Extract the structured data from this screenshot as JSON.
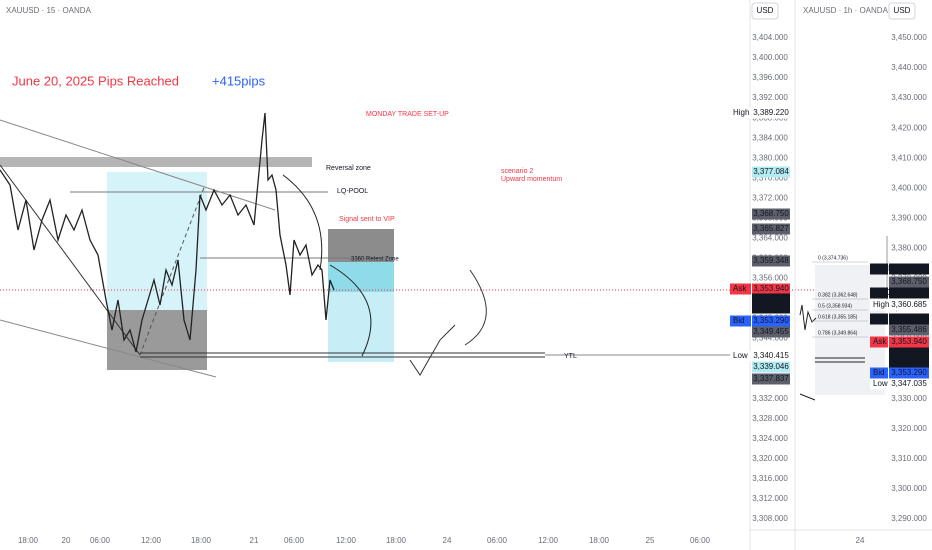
{
  "header": {
    "symbol": "XAUUSD · 15 · OANDA",
    "currency": "USD"
  },
  "side_header": {
    "symbol": "XAUUSD · 1h · OANDA",
    "currency": "USD"
  },
  "annotations": {
    "headline": "June 20, 2025 Pips Reached",
    "pips": "+415pips",
    "setup": "MONDAY TRADE SET-UP",
    "reversal": "Reversal zone",
    "lq_pool": "LQ-POOL",
    "signal": "Signal sent to VIP",
    "retest": "3360 Retest Zone",
    "scenario": "scenario 2",
    "momentum": "Upward momentum",
    "ytl": "YTL"
  },
  "price_axis": [
    "3,404.000",
    "3,400.000",
    "3,396.000",
    "3,392.000",
    "3,388.000",
    "3,384.000",
    "3,380.000",
    "3,376.000",
    "3,372.000",
    "3,368.000",
    "3,364.000",
    "3,360.000",
    "3,356.000",
    "3,352.000",
    "3,348.000",
    "3,344.000",
    "3,340.000",
    "3,336.000",
    "3,332.000",
    "3,328.000",
    "3,324.000",
    "3,320.000",
    "3,316.000",
    "3,312.000",
    "3,308.000"
  ],
  "side_price_axis": [
    "3,450.000",
    "3,440.000",
    "3,430.000",
    "3,420.000",
    "3,410.000",
    "3,400.000",
    "3,390.000",
    "3,380.000",
    "3,370.000",
    "3,360.000",
    "3,350.000",
    "3,340.000",
    "3,330.000",
    "3,320.000",
    "3,310.000",
    "3,300.000",
    "3,290.000"
  ],
  "time_axis": [
    "18:00",
    "20",
    "06:00",
    "12:00",
    "18:00",
    "21",
    "06:00",
    "12:00",
    "18:00",
    "24",
    "06:00",
    "12:00",
    "18:00",
    "25",
    "06:00"
  ],
  "side_time_axis": [
    "24"
  ],
  "price_tags": [
    {
      "label": "High",
      "value": "3,389.220"
    },
    {
      "value": "3,377.084"
    },
    {
      "value": "3,368.750"
    },
    {
      "value": "3,365.827"
    },
    {
      "value": "3,359.348"
    },
    {
      "label": "Ask",
      "value": "3,353.940"
    },
    {
      "value": "3,353.605",
      "time": "00:40"
    },
    {
      "label": "Bid",
      "value": "3,353.290"
    },
    {
      "value": "3,349.455"
    },
    {
      "label": "Low",
      "value": "3,340.415"
    },
    {
      "value": "3,339.046"
    },
    {
      "value": "3,337.837"
    }
  ],
  "side_price_tags": [
    {
      "label": "VAH",
      "value": "3,372.840"
    },
    {
      "value": "3,368.750"
    },
    {
      "label": "POC",
      "value": "3,366.470"
    },
    {
      "label": "High",
      "value": "3,360.685"
    },
    {
      "label": "VAL",
      "value": "3,356.460"
    },
    {
      "value": "3,355.486"
    },
    {
      "label": "Ask",
      "value": "3,353.940"
    },
    {
      "value": "3,353.605",
      "time": "15:39"
    },
    {
      "label": "Bid",
      "value": "3,353.290"
    },
    {
      "label": "Low",
      "value": "3,347.035"
    }
  ],
  "fib_levels": [
    "0 (3,374.736)",
    "0.382 (3,362.648)",
    "0.5 (3,358.934)",
    "0.618 (3,355.185)",
    "0.786 (3,349.864)"
  ]
}
